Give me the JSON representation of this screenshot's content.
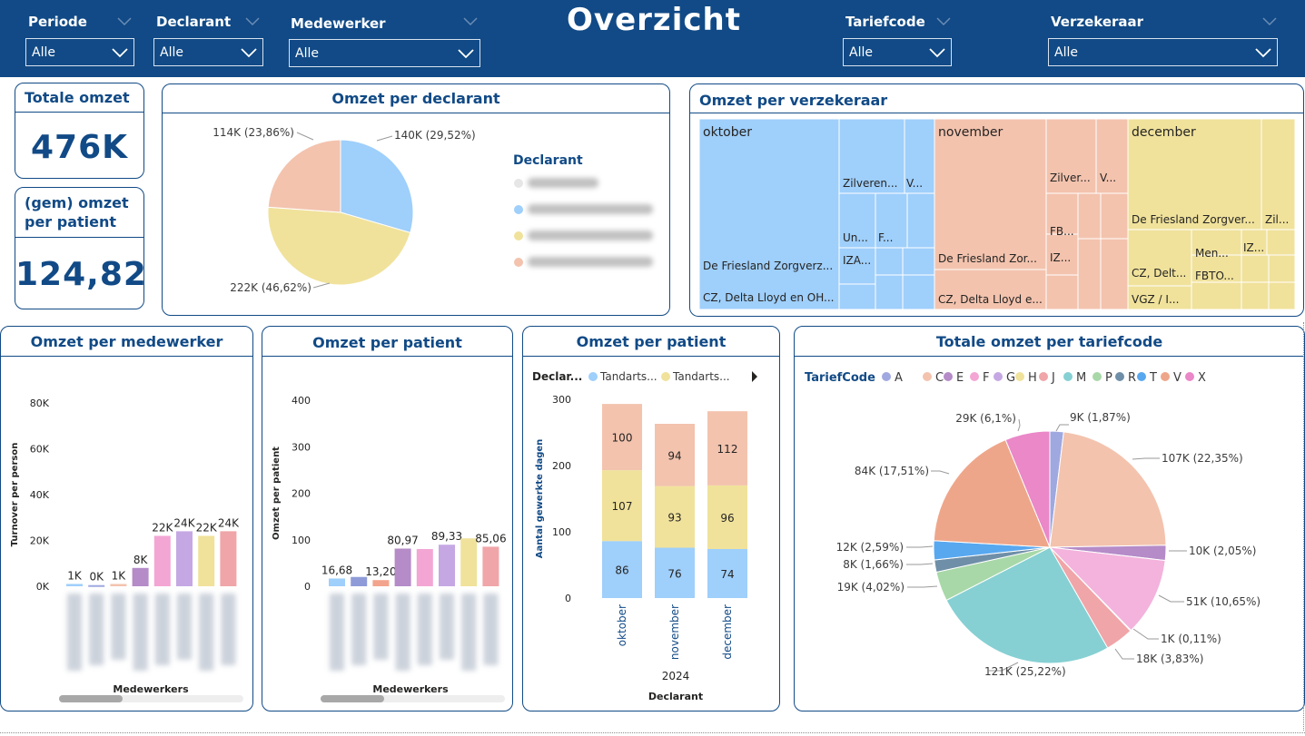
{
  "header": {
    "title": "Overzicht",
    "filters": [
      {
        "label": "Periode",
        "value": "Alle"
      },
      {
        "label": "Declarant",
        "value": "Alle"
      },
      {
        "label": "Medewerker",
        "value": "Alle"
      },
      {
        "label": "Tariefcode",
        "value": "Alle"
      },
      {
        "label": "Verzekeraar",
        "value": "Alle"
      }
    ]
  },
  "kpis": {
    "total": {
      "title": "Totale omzet",
      "value": "476K"
    },
    "avg": {
      "title_line1": "(gem) omzet",
      "title_line2": "per patient",
      "value": "124,82"
    }
  },
  "colors": {
    "navy": "#114a86",
    "blue": "#9fcffb",
    "yellow": "#f0e29b",
    "salmon": "#f3c3ae",
    "grey": "#e6e6e6"
  },
  "pie_declarant": {
    "title": "Omzet per declarant",
    "legend_title": "Declarant",
    "chart_data": {
      "type": "pie",
      "slices": [
        {
          "label": "140K (29,52%)",
          "value": 29.52,
          "color": "#9fcffb"
        },
        {
          "label": "222K (46,62%)",
          "value": 46.62,
          "color": "#f0e29b"
        },
        {
          "label": "114K (23,86%)",
          "value": 23.86,
          "color": "#f3c3ae"
        }
      ]
    }
  },
  "treemap": {
    "title": "Omzet per verzekeraar",
    "months": [
      {
        "name": "oktober",
        "color": "#9fcffb",
        "labels": [
          "Zilveren...",
          "V...",
          "Un...",
          "F...",
          "IZA...",
          "De Friesland Zorgverz...",
          "CZ, Delta Lloyd en OH..."
        ]
      },
      {
        "name": "november",
        "color": "#f3c3ae",
        "labels": [
          "Zilver...",
          "V...",
          "FB...",
          "IZ...",
          "De Friesland Zor...",
          "CZ, Delta Lloyd e..."
        ]
      },
      {
        "name": "december",
        "color": "#f0e29b",
        "labels": [
          "De Friesland Zorgver...",
          "Zil...",
          "Men...",
          "IZ...",
          "FBTO...",
          "CZ, Delt...",
          "VGZ / I..."
        ]
      }
    ]
  },
  "medewerker_chart": {
    "title": "Omzet per medewerker",
    "chart_data": {
      "type": "bar",
      "ylabel": "Turnover per person",
      "xlabel": "Medewerkers",
      "y_ticks": [
        "80K",
        "60K",
        "40K",
        "20K",
        "0K"
      ],
      "ylim": [
        0,
        80000
      ],
      "values": [
        1000,
        500,
        1000,
        8000,
        22000,
        24000,
        22000,
        24000
      ],
      "labels": [
        "1K",
        "0K",
        "1K",
        "8K",
        "22K",
        "24K",
        "22K",
        "24K"
      ],
      "colors": [
        "#9fcffb",
        "#a0a8e0",
        "#f3c3ae",
        "#b58bc8",
        "#f3a6d4",
        "#c5a8e3",
        "#f0e29b",
        "#f0a5a8"
      ]
    }
  },
  "patient_chart": {
    "title": "Omzet per patient",
    "chart_data": {
      "type": "bar",
      "ylabel": "Omzet per patient",
      "xlabel": "Medewerkers",
      "y_ticks": [
        "400",
        "300",
        "200",
        "100",
        "0"
      ],
      "ylim": [
        0,
        400
      ],
      "values": [
        16.68,
        20,
        13.2,
        80.97,
        80,
        89.33,
        103,
        85.06
      ],
      "labels": [
        "16,68",
        "",
        "13,20",
        "80,97",
        "",
        "89,33",
        "",
        "85,06"
      ],
      "colors": [
        "#9fcffb",
        "#8f9bd8",
        "#f3a48c",
        "#b58bc8",
        "#f3a6d4",
        "#c5a8e3",
        "#f0e29b",
        "#f0a5a8"
      ]
    }
  },
  "stacked_chart": {
    "title": "Omzet per patient",
    "legend_title": "Declar...",
    "legend": [
      {
        "name": "Tandarts...",
        "color": "#9fcffb"
      },
      {
        "name": "Tandarts...",
        "color": "#f0e29b"
      }
    ],
    "chart_data": {
      "type": "bar",
      "ylabel": "Aantal gewerkte dagen",
      "xlabel": "Declarant",
      "x_group": "2024",
      "categories": [
        "oktober",
        "november",
        "december"
      ],
      "y_ticks": [
        "300",
        "200",
        "100",
        "0"
      ],
      "ylim": [
        0,
        300
      ],
      "series": [
        {
          "values": [
            86,
            76,
            74
          ],
          "color": "#9fcffb"
        },
        {
          "values": [
            107,
            93,
            96
          ],
          "color": "#f0e29b"
        },
        {
          "values": [
            100,
            94,
            112
          ],
          "color": "#f3c3ae"
        }
      ]
    }
  },
  "tariff_chart": {
    "title": "Totale omzet per tariefcode",
    "legend_title": "TariefCode",
    "legend": [
      {
        "name": "A",
        "color": "#a0a8e0"
      },
      {
        "name": "C",
        "color": "#f3c3ae"
      },
      {
        "name": "E",
        "color": "#b58bc8"
      },
      {
        "name": "F",
        "color": "#f3a6d4"
      },
      {
        "name": "G",
        "color": "#c5a8e3"
      },
      {
        "name": "H",
        "color": "#f0e29b"
      },
      {
        "name": "J",
        "color": "#f0a5a8"
      },
      {
        "name": "M",
        "color": "#86d0d3"
      },
      {
        "name": "P",
        "color": "#a8d8a8"
      },
      {
        "name": "R",
        "color": "#6f8fa8"
      },
      {
        "name": "T",
        "color": "#58a8f0"
      },
      {
        "name": "V",
        "color": "#eea68a"
      },
      {
        "name": "X",
        "color": "#ea88c8"
      }
    ],
    "chart_data": {
      "type": "pie",
      "slices": [
        {
          "label": "9K (1,87%)",
          "value": 1.87,
          "color": "#a0a8e0"
        },
        {
          "label": "107K (22,35%)",
          "value": 22.35,
          "color": "#f3c3ae"
        },
        {
          "label": "10K (2,05%)",
          "value": 2.05,
          "color": "#b58bc8"
        },
        {
          "label": "51K (10,65%)",
          "value": 10.65,
          "color": "#f3b3dc"
        },
        {
          "label": "1K (0,11%)",
          "value": 0.11,
          "color": "#c5a8e3"
        },
        {
          "label": "18K (3,83%)",
          "value": 3.83,
          "color": "#f0a5a8"
        },
        {
          "label": "121K (25,22%)",
          "value": 25.22,
          "color": "#86d0d3"
        },
        {
          "label": "19K (4,02%)",
          "value": 4.02,
          "color": "#a8d8a8"
        },
        {
          "label": "8K (1,66%)",
          "value": 1.66,
          "color": "#6f8fa8"
        },
        {
          "label": "12K (2,59%)",
          "value": 2.59,
          "color": "#58a8f0"
        },
        {
          "label": "84K (17,51%)",
          "value": 17.51,
          "color": "#eea68a"
        },
        {
          "label": "29K (6,1%)",
          "value": 6.1,
          "color": "#ea88c8"
        }
      ]
    }
  }
}
